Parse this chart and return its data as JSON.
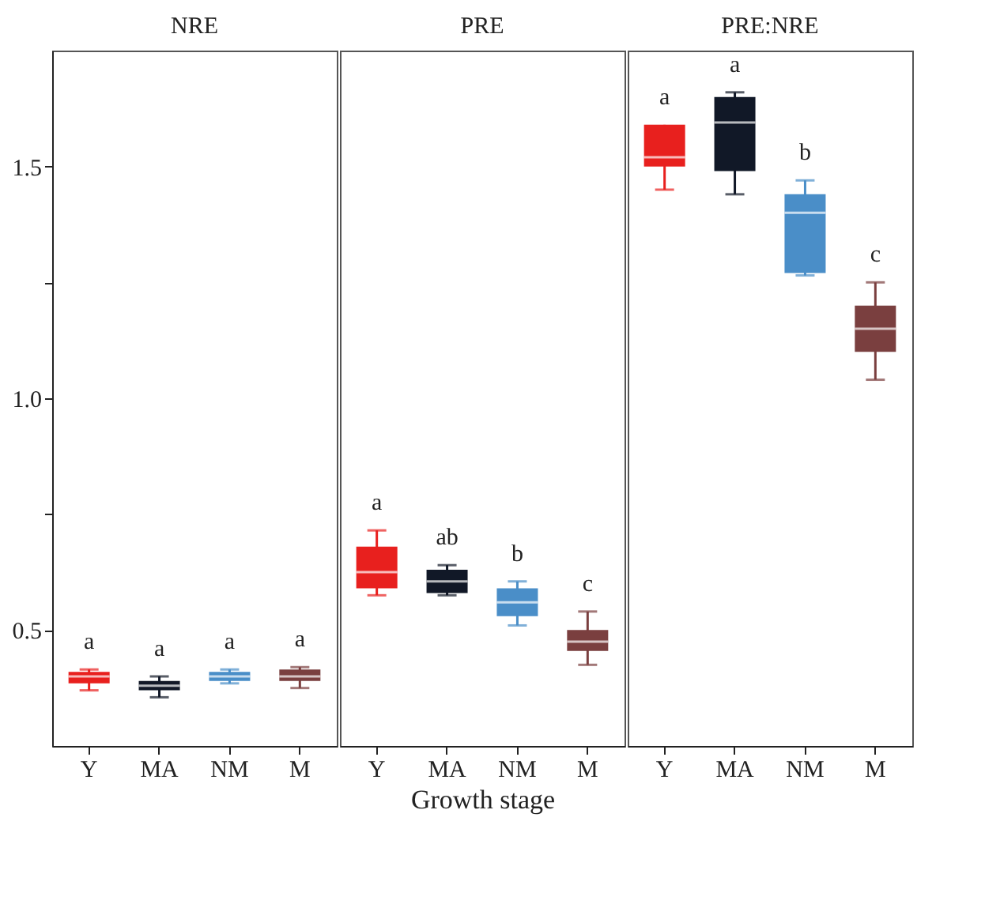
{
  "chart_data": [
    {
      "type": "box",
      "title": "NRE",
      "categories": [
        "Y",
        "MA",
        "NM",
        "M"
      ],
      "colors": [
        "#e8201e",
        "#111827",
        "#4a8ec8",
        "#7a3f3f"
      ],
      "ylim": [
        0.25,
        1.75
      ],
      "yticks": [
        0.5,
        {
          "value": 0.75,
          "label": null
        },
        {
          "value": 1.0,
          "label": "1.0"
        },
        {
          "value": 1.25,
          "label": null
        },
        1.5
      ],
      "boxes": [
        {
          "low": 0.37,
          "q1": 0.385,
          "median": 0.4,
          "q3": 0.41,
          "high": 0.415
        },
        {
          "low": 0.355,
          "q1": 0.37,
          "median": 0.38,
          "q3": 0.39,
          "high": 0.4
        },
        {
          "low": 0.385,
          "q1": 0.39,
          "median": 0.4,
          "q3": 0.41,
          "high": 0.415
        },
        {
          "low": 0.375,
          "q1": 0.39,
          "median": 0.4,
          "q3": 0.415,
          "high": 0.42
        }
      ],
      "annotations": [
        {
          "text": "a",
          "x": "Y",
          "y": 0.415
        },
        {
          "text": "a",
          "x": "MA",
          "y": 0.4
        },
        {
          "text": "a",
          "x": "NM",
          "y": 0.415
        },
        {
          "text": "a",
          "x": "M",
          "y": 0.42
        }
      ]
    },
    {
      "type": "box",
      "title": "PRE",
      "xlabel": "Growth stage",
      "categories": [
        "Y",
        "MA",
        "NM",
        "M"
      ],
      "colors": [
        "#e8201e",
        "#111827",
        "#4a8ec8",
        "#7a3f3f"
      ],
      "ylim": [
        0.25,
        1.75
      ],
      "tick_labels": "x",
      "boxes": [
        {
          "low": 0.575,
          "q1": 0.59,
          "median": 0.625,
          "q3": 0.68,
          "high": 0.715
        },
        {
          "low": 0.575,
          "q1": 0.58,
          "median": 0.605,
          "q3": 0.63,
          "high": 0.64
        },
        {
          "low": 0.51,
          "q1": 0.53,
          "median": 0.56,
          "q3": 0.59,
          "high": 0.605
        },
        {
          "low": 0.425,
          "q1": 0.455,
          "median": 0.475,
          "q3": 0.5,
          "high": 0.54
        }
      ],
      "annotations": [
        {
          "text": "a",
          "x": "Y",
          "y": 0.715
        },
        {
          "text": "ab",
          "x": "MA",
          "y": 0.64
        },
        {
          "text": "b",
          "x": "NM",
          "y": 0.605
        },
        {
          "text": "c",
          "x": "M",
          "y": 0.54
        }
      ]
    },
    {
      "type": "box",
      "title": "PRE:NRE",
      "categories": [
        "Y",
        "MA",
        "NM",
        "M"
      ],
      "colors": [
        "#e8201e",
        "#111827",
        "#4a8ec8",
        "#7a3f3f"
      ],
      "ylim": [
        0.25,
        1.75
      ],
      "tick_labels": "x",
      "boxes": [
        {
          "low": 1.45,
          "q1": 1.5,
          "median": 1.52,
          "q3": 1.59,
          "high": 1.59
        },
        {
          "low": 1.44,
          "q1": 1.49,
          "median": 1.595,
          "q3": 1.65,
          "high": 1.66
        },
        {
          "low": 1.265,
          "q1": 1.27,
          "median": 1.4,
          "q3": 1.44,
          "high": 1.47
        },
        {
          "low": 1.04,
          "q1": 1.1,
          "median": 1.15,
          "q3": 1.2,
          "high": 1.25
        }
      ],
      "annotations": [
        {
          "text": "a",
          "x": "Y",
          "y": 1.59
        },
        {
          "text": "a",
          "x": "MA",
          "y": 1.66
        },
        {
          "text": "b",
          "x": "NM",
          "y": 1.47
        },
        {
          "text": "c",
          "x": "M",
          "y": 1.25
        }
      ]
    }
  ]
}
